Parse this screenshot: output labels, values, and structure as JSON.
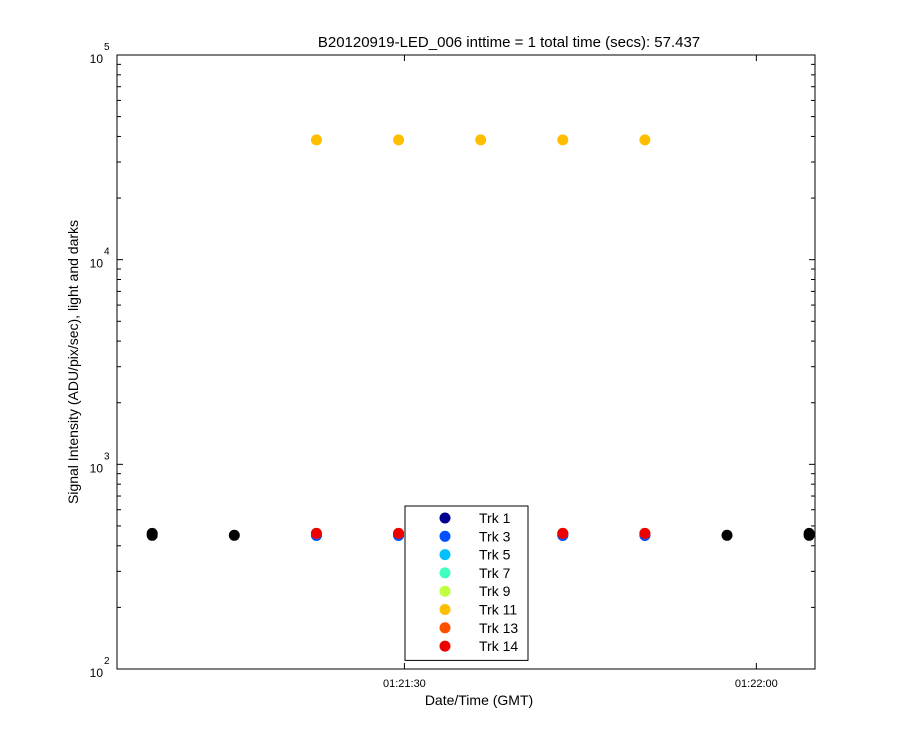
{
  "chart_data": {
    "type": "scatter",
    "title": "B20120919-LED_006 inttime = 1 total time (secs): 57.437",
    "xlabel": "Date/Time (GMT)",
    "ylabel": "Signal Intensity (ADU/pix/sec), light and darks",
    "yscale": "log",
    "ylim": [
      100,
      100000
    ],
    "xlim": [
      "01:21:05.5",
      "01:22:05"
    ],
    "x_unit": "time of day (GMT, hh:mm:ss)",
    "xticks": [
      {
        "x": "01:21:30",
        "label": "01:21:30"
      },
      {
        "x": "01:22:00",
        "label": "01:22:00"
      }
    ],
    "yticks": [
      {
        "value": 100,
        "base": "10",
        "exp": "2"
      },
      {
        "value": 1000,
        "base": "10",
        "exp": "3"
      },
      {
        "value": 10000,
        "base": "10",
        "exp": "4"
      },
      {
        "value": 100000,
        "base": "10",
        "exp": "5"
      }
    ],
    "grid": false,
    "legend_position": "bottom-center",
    "series": [
      {
        "name": "Trk 1",
        "color": "#00008f",
        "points": [
          {
            "x": "01:21:22.5",
            "y": 450
          },
          {
            "x": "01:21:29.5",
            "y": 450
          },
          {
            "x": "01:21:43.5",
            "y": 450
          },
          {
            "x": "01:21:50.5",
            "y": 450
          }
        ]
      },
      {
        "name": "Trk 3",
        "color": "#0050ff",
        "points": [
          {
            "x": "01:21:22.5",
            "y": 450
          },
          {
            "x": "01:21:29.5",
            "y": 450
          },
          {
            "x": "01:21:43.5",
            "y": 450
          },
          {
            "x": "01:21:50.5",
            "y": 450
          }
        ]
      },
      {
        "name": "Trk 5",
        "color": "#00c0ff",
        "points": []
      },
      {
        "name": "Trk 7",
        "color": "#40ffbf",
        "points": []
      },
      {
        "name": "Trk 9",
        "color": "#bfff40",
        "points": []
      },
      {
        "name": "Trk 11",
        "color": "#ffbf00",
        "points": [
          {
            "x": "01:21:22.5",
            "y": 38500
          },
          {
            "x": "01:21:29.5",
            "y": 38500
          },
          {
            "x": "01:21:36.5",
            "y": 38500
          },
          {
            "x": "01:21:43.5",
            "y": 38500
          },
          {
            "x": "01:21:50.5",
            "y": 38500
          }
        ]
      },
      {
        "name": "Trk 13",
        "color": "#ff5000",
        "points": [
          {
            "x": "01:21:22.5",
            "y": 460
          },
          {
            "x": "01:21:29.5",
            "y": 460
          },
          {
            "x": "01:21:43.5",
            "y": 460
          },
          {
            "x": "01:21:50.5",
            "y": 460
          }
        ]
      },
      {
        "name": "Trk 14",
        "color": "#ef0000",
        "points": [
          {
            "x": "01:21:22.5",
            "y": 460
          },
          {
            "x": "01:21:29.5",
            "y": 460
          },
          {
            "x": "01:21:43.5",
            "y": 460
          },
          {
            "x": "01:21:50.5",
            "y": 460
          }
        ]
      }
    ],
    "dark_frames": {
      "color": "#000000",
      "points": [
        {
          "x": "01:21:08.5",
          "y": 450
        },
        {
          "x": "01:21:08.5",
          "y": 460
        },
        {
          "x": "01:21:15.5",
          "y": 450
        },
        {
          "x": "01:21:57.5",
          "y": 450
        },
        {
          "x": "01:22:04.5",
          "y": 450
        },
        {
          "x": "01:22:04.5",
          "y": 460
        }
      ]
    }
  }
}
